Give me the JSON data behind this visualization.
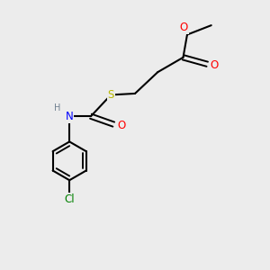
{
  "background_color": "#ececec",
  "bond_color": "#000000",
  "atom_colors": {
    "O": "#ff0000",
    "S": "#b8b800",
    "N": "#0000ff",
    "Cl": "#008000",
    "C": "#000000",
    "H": "#708090"
  },
  "figsize": [
    3.0,
    3.0
  ],
  "dpi": 100,
  "lw": 1.5,
  "fs": 8.5,
  "fs_small": 7.0,
  "ring_r": 0.72,
  "xlim": [
    0,
    10
  ],
  "ylim": [
    0,
    10
  ]
}
